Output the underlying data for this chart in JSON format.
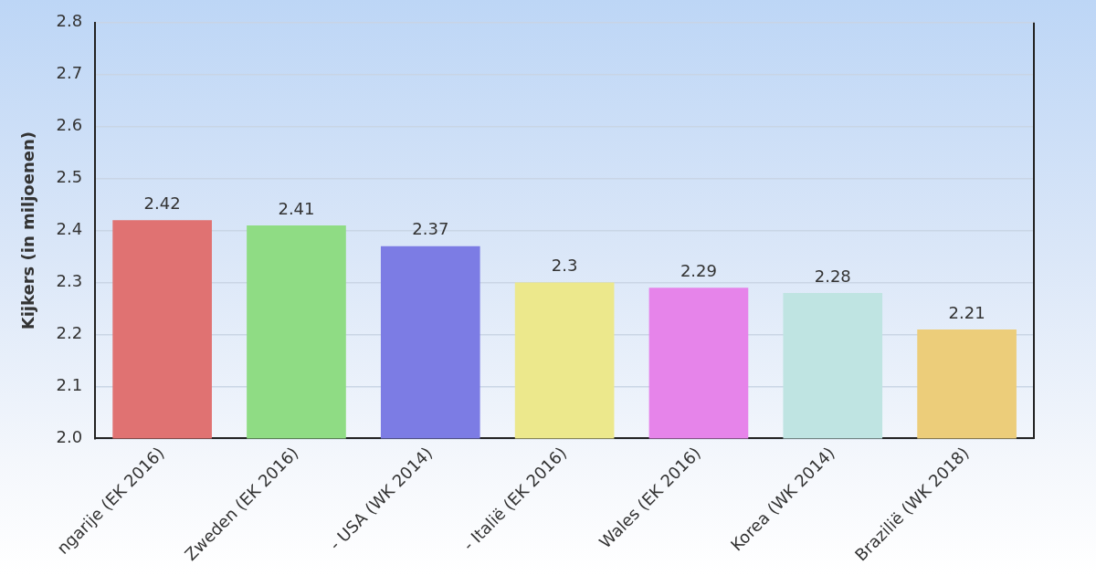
{
  "chart_data": {
    "type": "bar",
    "ylabel": "Kijkers (in miljoenen)",
    "categories": [
      "ngarije (EK 2016)",
      "Zweden (EK 2016)",
      "- USA (WK 2014)",
      "- Italië (EK 2016)",
      "Wales (EK 2016)",
      "Korea (WK 2014)",
      "Brazilië (WK 2018)"
    ],
    "values": [
      2.42,
      2.41,
      2.37,
      2.3,
      2.29,
      2.28,
      2.21
    ],
    "colors": [
      "#e07272",
      "#8fdc84",
      "#7c7ce4",
      "#ece88c",
      "#e684ea",
      "#bfe4e2",
      "#eccd7a"
    ],
    "ylim": [
      2,
      2.8
    ],
    "yticks": [
      {
        "value": 2,
        "label": "2.0"
      },
      2.1,
      2.2,
      2.3,
      2.4,
      2.5,
      2.6,
      2.7,
      2.8
    ],
    "grid": "y",
    "data_labels": true
  }
}
